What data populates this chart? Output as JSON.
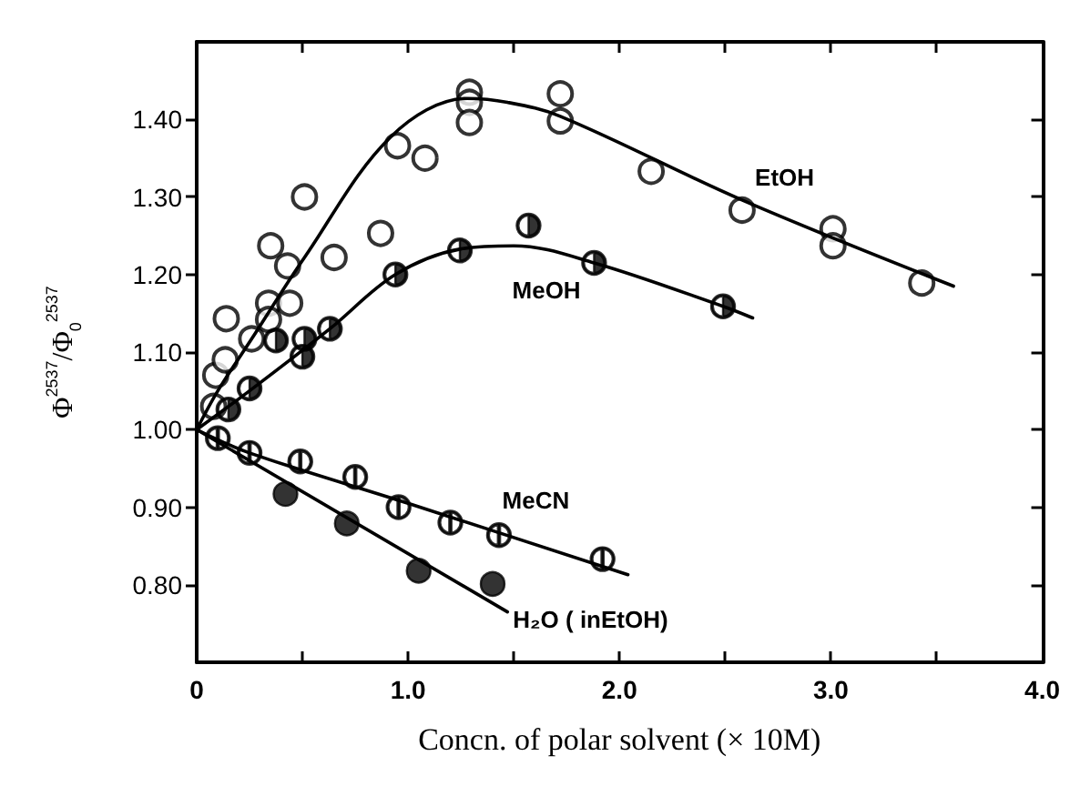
{
  "chart_data": {
    "type": "scatter",
    "xlabel": "Concn. of polar solvent (× 10M)",
    "ylabel": "Φ$^{2537}$/Φ$_{0}$$^{2537}$",
    "xlim": [
      0,
      4.0
    ],
    "ylim": [
      0.7,
      1.5
    ],
    "xticks": [
      {
        "value": 0,
        "label": "0"
      },
      {
        "value": 0.5,
        "label": null
      },
      {
        "value": 1.0,
        "label": "1.0"
      },
      {
        "value": 1.5,
        "label": null
      },
      {
        "value": 2.0,
        "label": "2.0"
      },
      {
        "value": 2.5,
        "label": null
      },
      {
        "value": 3.0,
        "label": "3.0"
      },
      {
        "value": 3.5,
        "label": null
      },
      {
        "value": 4.0,
        "label": "4.0"
      }
    ],
    "yticks": [
      {
        "value": 0.8,
        "label": "0.80"
      },
      {
        "value": 0.9,
        "label": "0.90"
      },
      {
        "value": 1.0,
        "label": "1.00"
      },
      {
        "value": 1.1,
        "label": "1.10"
      },
      {
        "value": 1.2,
        "label": "1.20"
      },
      {
        "value": 1.3,
        "label": "1.30"
      },
      {
        "value": 1.4,
        "label": "1.40"
      }
    ],
    "grid": false,
    "legend": false,
    "marker": "circle",
    "series": [
      {
        "type": "scatter",
        "color": "#000000",
        "x": [
          0.08,
          0.09,
          0.135,
          0.14,
          0.26,
          0.34,
          0.34,
          0.35,
          0.43,
          0.44,
          0.51,
          0.65,
          0.87,
          0.95,
          1.08,
          1.29,
          1.29,
          1.29,
          1.72,
          1.72,
          2.15,
          2.58,
          3.01,
          3.01,
          3.43
        ],
        "values": [
          1.03,
          1.07,
          1.09,
          1.143,
          1.117,
          1.163,
          1.142,
          1.237,
          1.211,
          1.163,
          1.3,
          1.222,
          1.253,
          1.366,
          1.35,
          1.435,
          1.422,
          1.396,
          1.433,
          1.398,
          1.333,
          1.283,
          1.259,
          1.237,
          1.189
        ]
      },
      {
        "type": "scatter",
        "color": "#000000",
        "x": [
          0.15,
          0.25,
          0.375,
          0.5,
          0.51,
          0.63,
          0.94,
          1.245,
          1.57,
          1.88,
          2.49
        ],
        "values": [
          1.026,
          1.053,
          1.115,
          1.094,
          1.117,
          1.13,
          1.2,
          1.231,
          1.263,
          1.215,
          1.159
        ]
      },
      {
        "type": "scatter",
        "color": "#000000",
        "x": [
          0.1,
          0.25,
          0.49,
          0.75,
          0.955,
          1.2,
          1.43,
          1.92
        ],
        "values": [
          0.989,
          0.97,
          0.959,
          0.939,
          0.9,
          0.88,
          0.864,
          0.833
        ]
      },
      {
        "type": "scatter",
        "color": "#000000",
        "x": [
          0.42,
          0.71,
          1.05,
          1.4
        ],
        "values": [
          0.917,
          0.879,
          0.818,
          0.801
        ]
      },
      {
        "type": "line",
        "name": "EtOH",
        "color": "#000000",
        "marker": "none",
        "x": [
          0,
          0.1,
          0.26,
          0.51,
          0.92,
          1.28,
          1.47,
          1.72,
          2.58,
          3.58
        ],
        "values": [
          1.0,
          1.05,
          1.117,
          1.222,
          1.378,
          1.427,
          1.422,
          1.404,
          1.296,
          1.185
        ]
      },
      {
        "type": "line",
        "name": "MeOH",
        "color": "#000000",
        "marker": "none",
        "x": [
          0,
          0.25,
          0.63,
          0.94,
          1.25,
          1.5,
          1.88,
          2.49,
          2.63
        ],
        "values": [
          1.0,
          1.05,
          1.13,
          1.2,
          1.233,
          1.237,
          1.215,
          1.159,
          1.144
        ]
      },
      {
        "type": "line",
        "name": "MeCN",
        "color": "#000000",
        "marker": "none",
        "x": [
          0,
          0.25,
          1.0,
          2.04
        ],
        "values": [
          1.0,
          0.97,
          0.905,
          0.813
        ]
      },
      {
        "type": "line",
        "name": "H₂O ( inEtOH)",
        "color": "#000000",
        "marker": "none",
        "x": [
          0,
          1.47
        ],
        "values": [
          1.0,
          0.765
        ]
      }
    ]
  }
}
